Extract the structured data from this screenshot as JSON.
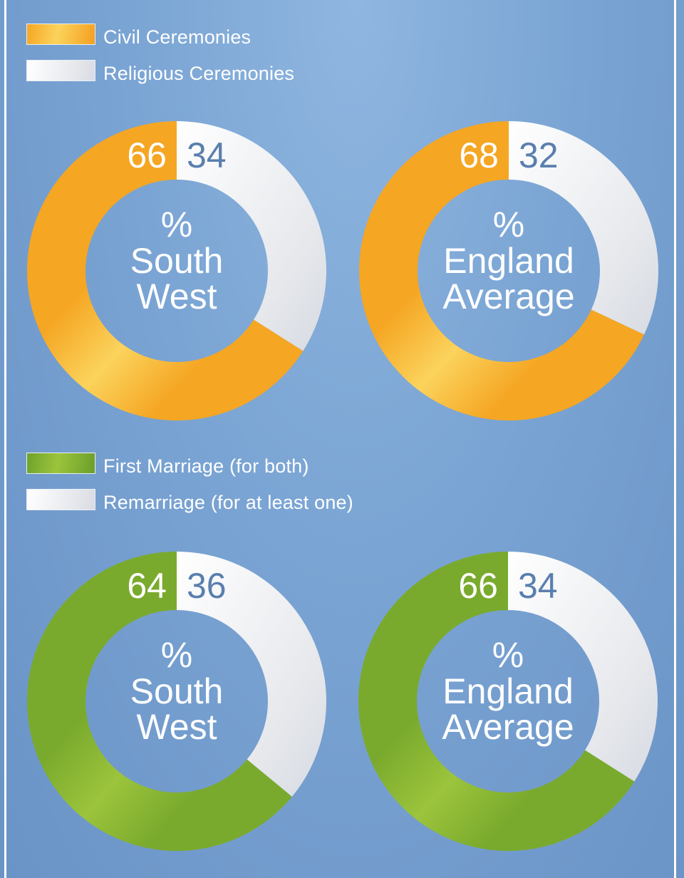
{
  "legend_top": {
    "items": [
      {
        "label": "Civil Ceremonies"
      },
      {
        "label": "Religious Ceremonies"
      }
    ]
  },
  "legend_bottom": {
    "items": [
      {
        "label": "First Marriage (for both)"
      },
      {
        "label": "Remarriage (for at least one)"
      }
    ]
  },
  "colors": {
    "civil": "#f5a623",
    "civil_light": "#fbd35c",
    "first_marriage": "#7aaa2d",
    "first_marriage_light": "#9cc43c",
    "gray": "#e6e8ec",
    "value_blue": "#5a7fae",
    "background": "#7aa4d3"
  },
  "chart_data": [
    {
      "type": "pie",
      "center_label": [
        "%",
        "South",
        "West"
      ],
      "slices": [
        {
          "label": "Civil Ceremonies",
          "value": 66,
          "value_text": "66"
        },
        {
          "label": "Religious Ceremonies",
          "value": 34,
          "value_text": "34"
        }
      ]
    },
    {
      "type": "pie",
      "center_label": [
        "%",
        "England",
        "Average"
      ],
      "slices": [
        {
          "label": "Civil Ceremonies",
          "value": 68,
          "value_text": "68"
        },
        {
          "label": "Religious Ceremonies",
          "value": 32,
          "value_text": "32"
        }
      ]
    },
    {
      "type": "pie",
      "center_label": [
        "%",
        "South",
        "West"
      ],
      "slices": [
        {
          "label": "First Marriage (for both)",
          "value": 64,
          "value_text": "64"
        },
        {
          "label": "Remarriage (for at least one)",
          "value": 36,
          "value_text": "36"
        }
      ]
    },
    {
      "type": "pie",
      "center_label": [
        "%",
        "England",
        "Average"
      ],
      "slices": [
        {
          "label": "First Marriage (for both)",
          "value": 66,
          "value_text": "66"
        },
        {
          "label": "Remarriage (for at least one)",
          "value": 34,
          "value_text": "34"
        }
      ]
    }
  ]
}
